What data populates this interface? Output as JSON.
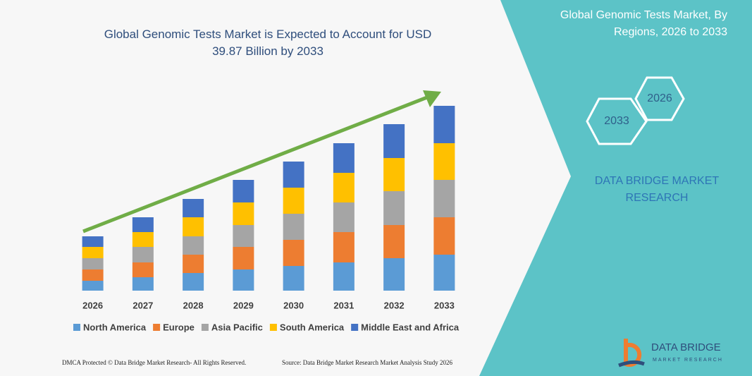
{
  "chart_data": {
    "type": "stacked-bar",
    "title": "Global Genomic Tests Market is Expected to Account for USD 39.87 Billion by 2033",
    "categories": [
      "2026",
      "2027",
      "2028",
      "2029",
      "2030",
      "2031",
      "2032",
      "2033"
    ],
    "series": [
      {
        "name": "North America",
        "color": "#5b9bd5",
        "values": [
          14,
          19,
          25,
          30,
          35,
          40,
          46,
          51
        ]
      },
      {
        "name": "Europe",
        "color": "#ed7d31",
        "values": [
          16,
          21,
          26,
          32,
          37,
          43,
          47,
          53
        ]
      },
      {
        "name": "Asia Pacific",
        "color": "#a5a5a5",
        "values": [
          16,
          22,
          26,
          31,
          37,
          42,
          48,
          53
        ]
      },
      {
        "name": "South America",
        "color": "#ffc000",
        "values": [
          16,
          21,
          27,
          32,
          37,
          42,
          47,
          52
        ]
      },
      {
        "name": "Middle East and Africa",
        "color": "#4472c4",
        "values": [
          15,
          21,
          26,
          32,
          37,
          42,
          48,
          53
        ]
      }
    ],
    "legend": "bottom"
  },
  "panel": {
    "title": "Global Genomic Tests Market, By Regions, 2026 to 2033",
    "hex_left": "2033",
    "hex_right": "2026",
    "brand": "DATA BRIDGE MARKET RESEARCH",
    "logo_name": "DATA BRIDGE",
    "logo_sub": "MARKET RESEARCH"
  },
  "footer": {
    "left": "DMCA Protected © Data Bridge Market Research- All Rights Reserved.",
    "right": "Source: Data Bridge Market Research Market Analysis Study 2026"
  }
}
